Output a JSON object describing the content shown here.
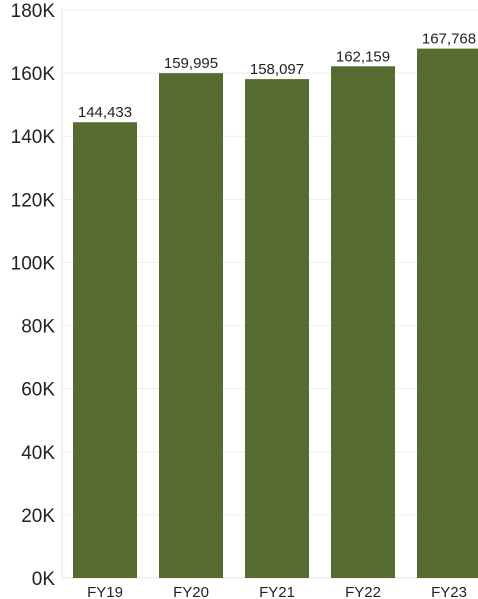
{
  "chart_data": {
    "type": "bar",
    "title": "",
    "xlabel": "",
    "ylabel": "",
    "categories": [
      "FY19",
      "FY20",
      "FY21",
      "FY22",
      "FY23"
    ],
    "values": [
      144433,
      159995,
      158097,
      162159,
      167768
    ],
    "data_labels": [
      "144,433",
      "159,995",
      "158,097",
      "162,159",
      "167,768"
    ],
    "ylim": [
      0,
      180000
    ],
    "y_ticks": [
      0,
      20000,
      40000,
      60000,
      80000,
      100000,
      120000,
      140000,
      160000,
      180000
    ],
    "y_tick_labels": [
      "0K",
      "20K",
      "40K",
      "60K",
      "80K",
      "100K",
      "120K",
      "140K",
      "160K",
      "180K"
    ],
    "grid": true,
    "legend": "none",
    "colors": {
      "bar": "#556b2f",
      "gridline": "#eeeeee",
      "text": "#222222"
    }
  }
}
